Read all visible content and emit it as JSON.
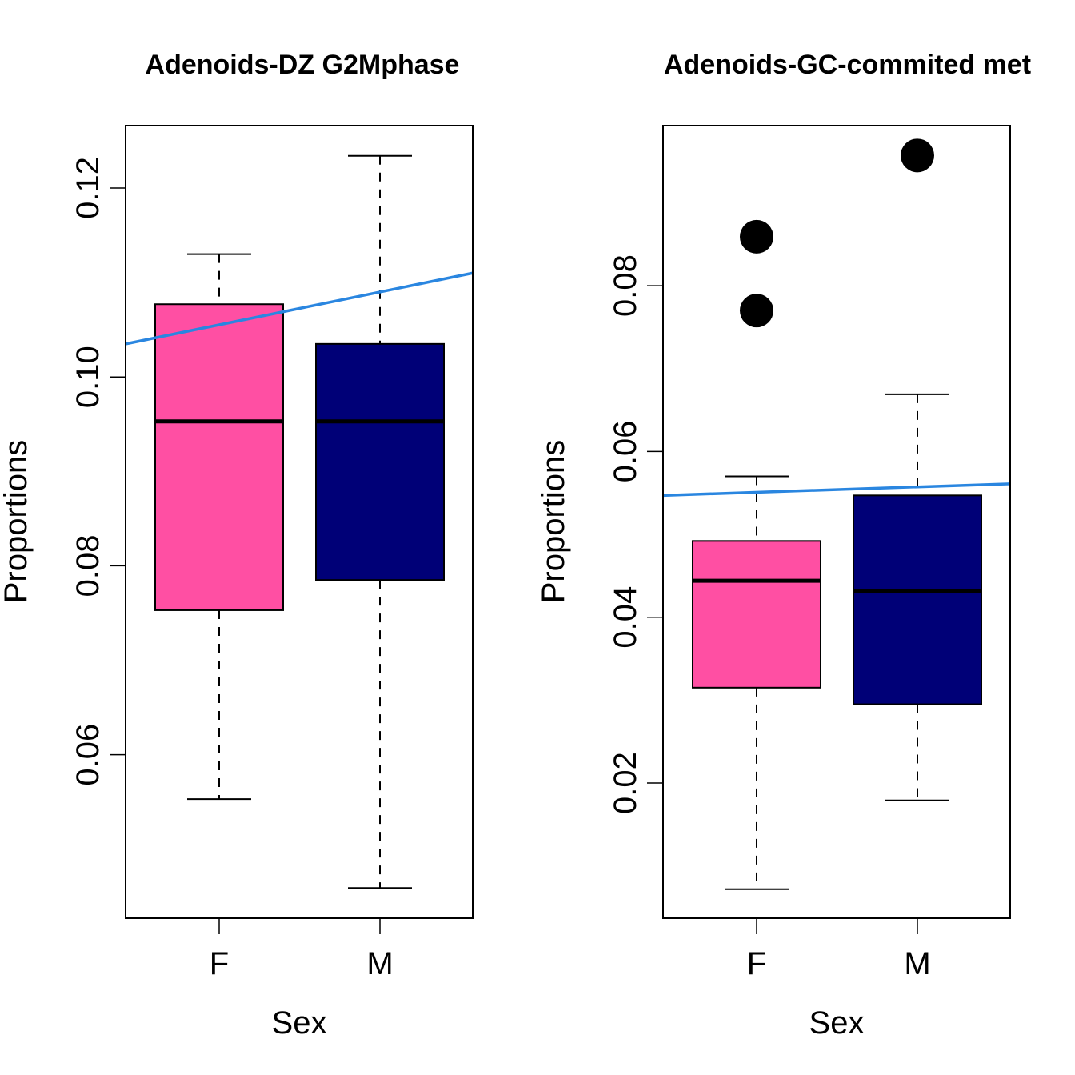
{
  "chart_data": [
    {
      "type": "box",
      "title": "Adenoids-DZ G2Mphase",
      "xlabel": "Sex",
      "ylabel": "Proportions",
      "ylim": [
        0.0427,
        0.1266
      ],
      "yticks": [
        0.06,
        0.08,
        0.1,
        0.12
      ],
      "ytick_labels": [
        "0.06",
        "0.08",
        "0.10",
        "0.12"
      ],
      "categories": [
        "F",
        "M"
      ],
      "groups": [
        {
          "name": "F",
          "color": "#FF4FA3",
          "whisker_low": 0.0553,
          "q1": 0.0753,
          "median": 0.0953,
          "q3": 0.1077,
          "whisker_high": 0.113,
          "outliers": []
        },
        {
          "name": "M",
          "color": "#000077",
          "whisker_low": 0.0459,
          "q1": 0.0785,
          "median": 0.0953,
          "q3": 0.1035,
          "whisker_high": 0.1234,
          "outliers": []
        }
      ],
      "trend_line": {
        "color": "#2A86E0",
        "y_at_left_edge": 0.1035,
        "y_at_right_edge": 0.111
      }
    },
    {
      "type": "box",
      "title": "Adenoids-GC-commited met",
      "xlabel": "Sex",
      "ylabel": "Proportions",
      "ylim": [
        0.0037,
        0.0993
      ],
      "yticks": [
        0.02,
        0.04,
        0.06,
        0.08
      ],
      "ytick_labels": [
        "0.02",
        "0.04",
        "0.06",
        "0.08"
      ],
      "categories": [
        "F",
        "M"
      ],
      "groups": [
        {
          "name": "F",
          "color": "#FF4FA3",
          "whisker_low": 0.0072,
          "q1": 0.0315,
          "median": 0.0444,
          "q3": 0.0492,
          "whisker_high": 0.057,
          "outliers": [
            0.0859,
            0.077
          ]
        },
        {
          "name": "M",
          "color": "#000077",
          "whisker_low": 0.0179,
          "q1": 0.0295,
          "median": 0.0432,
          "q3": 0.0547,
          "whisker_high": 0.0669,
          "outliers": [
            0.0957
          ]
        }
      ],
      "trend_line": {
        "color": "#2A86E0",
        "y_at_left_edge": 0.0547,
        "y_at_right_edge": 0.0561
      }
    }
  ]
}
